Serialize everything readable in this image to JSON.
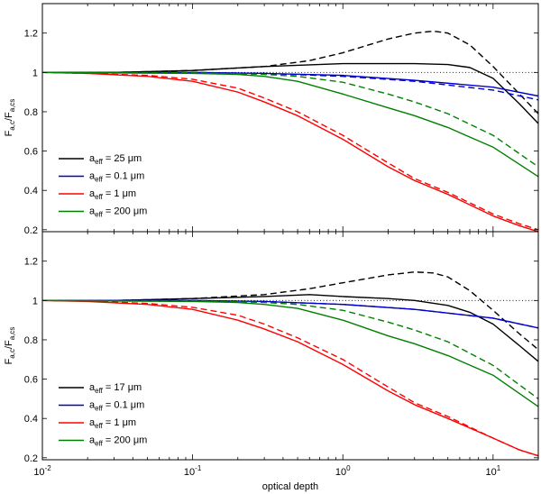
{
  "chart_data": {
    "type": "line",
    "xscale": "log",
    "xlabel": "optical depth",
    "x_ticks": [
      {
        "value": 0.01,
        "base": "10",
        "exp": "-2"
      },
      {
        "value": 0.1,
        "base": "10",
        "exp": "-1"
      },
      {
        "value": 1,
        "base": "10",
        "exp": "0"
      },
      {
        "value": 10,
        "base": "10",
        "exp": "1"
      }
    ],
    "xlim": [
      0.01,
      20
    ],
    "panels": [
      {
        "id": "top",
        "ylabel": {
          "main": "F",
          "sub1": "a,c",
          "slash": "/F",
          "sub2": "a,cs"
        },
        "ylim": [
          0.19,
          1.35
        ],
        "y_ticks": [
          "0.2",
          "0.4",
          "0.6",
          "0.8",
          "1",
          "1.2"
        ],
        "reference_line": 1,
        "legend": [
          {
            "label_prefix": "a",
            "label_sub": "eff",
            "label_value": " = 25 μm",
            "color": "#000000"
          },
          {
            "label_prefix": "a",
            "label_sub": "eff",
            "label_value": " = 0.1 μm",
            "color": "#0000cc"
          },
          {
            "label_prefix": "a",
            "label_sub": "eff",
            "label_value": " = 1 μm",
            "color": "#ff0000"
          },
          {
            "label_prefix": "a",
            "label_sub": "eff",
            "label_value": " = 200 μm",
            "color": "#007f00"
          }
        ],
        "series": [
          {
            "name": "25 μm solid",
            "color": "#000000",
            "dash": false,
            "x": [
              0.01,
              0.03,
              0.1,
              0.3,
              1,
              3,
              5,
              7,
              10,
              15,
              20
            ],
            "y": [
              1.0,
              1.0,
              1.01,
              1.03,
              1.045,
              1.045,
              1.04,
              1.025,
              0.97,
              0.84,
              0.74
            ]
          },
          {
            "name": "25 μm dashed",
            "color": "#000000",
            "dash": true,
            "x": [
              0.01,
              0.03,
              0.1,
              0.3,
              0.6,
              1,
              2,
              3,
              4,
              5,
              7,
              10,
              15,
              20
            ],
            "y": [
              1.0,
              1.0,
              1.01,
              1.03,
              1.06,
              1.1,
              1.17,
              1.2,
              1.21,
              1.2,
              1.14,
              1.03,
              0.89,
              0.79
            ]
          },
          {
            "name": "0.1 μm solid",
            "color": "#0000cc",
            "dash": false,
            "x": [
              0.01,
              0.1,
              0.3,
              1,
              3,
              10,
              20
            ],
            "y": [
              1.0,
              1.0,
              0.995,
              0.985,
              0.96,
              0.925,
              0.88
            ]
          },
          {
            "name": "0.1 μm dashed",
            "color": "#0000cc",
            "dash": true,
            "x": [
              0.01,
              0.1,
              0.3,
              1,
              3,
              10,
              20
            ],
            "y": [
              1.0,
              1.0,
              0.995,
              0.98,
              0.955,
              0.91,
              0.86
            ]
          },
          {
            "name": "1 μm solid",
            "color": "#ff0000",
            "dash": false,
            "x": [
              0.01,
              0.02,
              0.05,
              0.1,
              0.2,
              0.3,
              0.5,
              1,
              2,
              3,
              5,
              10,
              15,
              20
            ],
            "y": [
              1.0,
              0.995,
              0.98,
              0.955,
              0.9,
              0.85,
              0.78,
              0.66,
              0.52,
              0.45,
              0.38,
              0.27,
              0.22,
              0.19
            ]
          },
          {
            "name": "1 μm dashed",
            "color": "#ff0000",
            "dash": true,
            "x": [
              0.01,
              0.02,
              0.05,
              0.1,
              0.2,
              0.3,
              0.5,
              1,
              2,
              3,
              5,
              10,
              15,
              20
            ],
            "y": [
              1.0,
              0.995,
              0.985,
              0.965,
              0.92,
              0.87,
              0.8,
              0.68,
              0.54,
              0.46,
              0.39,
              0.28,
              0.23,
              0.2
            ]
          },
          {
            "name": "200 μm solid",
            "color": "#007f00",
            "dash": false,
            "x": [
              0.01,
              0.1,
              0.2,
              0.3,
              0.5,
              1,
              2,
              3,
              5,
              10,
              20
            ],
            "y": [
              1.0,
              0.995,
              0.99,
              0.98,
              0.955,
              0.89,
              0.82,
              0.78,
              0.72,
              0.62,
              0.47
            ]
          },
          {
            "name": "200 μm dashed",
            "color": "#007f00",
            "dash": true,
            "x": [
              0.01,
              0.1,
              0.3,
              0.5,
              1,
              2,
              3,
              5,
              10,
              20
            ],
            "y": [
              1.0,
              0.998,
              0.99,
              0.98,
              0.95,
              0.89,
              0.85,
              0.79,
              0.68,
              0.52
            ]
          }
        ]
      },
      {
        "id": "bottom",
        "ylabel": {
          "main": "F",
          "sub1": "a,c",
          "slash": "/F",
          "sub2": "a,cs"
        },
        "ylim": [
          0.19,
          1.35
        ],
        "y_ticks": [
          "0.2",
          "0.4",
          "0.6",
          "0.8",
          "1",
          "1.2"
        ],
        "reference_line": 1,
        "legend": [
          {
            "label_prefix": "a",
            "label_sub": "eff",
            "label_value": " = 17 μm",
            "color": "#000000"
          },
          {
            "label_prefix": "a",
            "label_sub": "eff",
            "label_value": " = 0.1 μm",
            "color": "#0000cc"
          },
          {
            "label_prefix": "a",
            "label_sub": "eff",
            "label_value": " = 1 μm",
            "color": "#ff0000"
          },
          {
            "label_prefix": "a",
            "label_sub": "eff",
            "label_value": " = 200 μm",
            "color": "#007f00"
          }
        ],
        "series": [
          {
            "name": "17 μm solid",
            "color": "#000000",
            "dash": false,
            "x": [
              0.01,
              0.03,
              0.1,
              0.3,
              0.6,
              1,
              2,
              3,
              5,
              7,
              10,
              15,
              20
            ],
            "y": [
              1.0,
              1.0,
              1.01,
              1.02,
              1.03,
              1.02,
              1.01,
              1.0,
              0.975,
              0.94,
              0.88,
              0.77,
              0.69
            ]
          },
          {
            "name": "17 μm dashed",
            "color": "#000000",
            "dash": true,
            "x": [
              0.01,
              0.03,
              0.1,
              0.3,
              0.6,
              1,
              2,
              3,
              4,
              5,
              7,
              10,
              15,
              20
            ],
            "y": [
              1.0,
              1.0,
              1.01,
              1.03,
              1.06,
              1.09,
              1.13,
              1.145,
              1.14,
              1.12,
              1.05,
              0.95,
              0.83,
              0.75
            ]
          },
          {
            "name": "0.1 μm solid",
            "color": "#0000cc",
            "dash": false,
            "x": [
              0.01,
              0.1,
              0.3,
              1,
              3,
              10,
              20
            ],
            "y": [
              1.0,
              1.0,
              0.995,
              0.98,
              0.955,
              0.91,
              0.86
            ]
          },
          {
            "name": "0.1 μm dashed",
            "color": "#0000cc",
            "dash": true,
            "x": [
              0.01,
              0.1,
              0.3,
              1,
              3,
              10,
              20
            ],
            "y": [
              1.0,
              1.0,
              0.995,
              0.98,
              0.955,
              0.91,
              0.86
            ]
          },
          {
            "name": "1 μm solid",
            "color": "#ff0000",
            "dash": false,
            "x": [
              0.01,
              0.02,
              0.05,
              0.1,
              0.2,
              0.3,
              0.5,
              1,
              2,
              3,
              5,
              10,
              15,
              20
            ],
            "y": [
              1.0,
              0.995,
              0.98,
              0.955,
              0.9,
              0.855,
              0.79,
              0.675,
              0.54,
              0.47,
              0.4,
              0.3,
              0.24,
              0.21
            ]
          },
          {
            "name": "1 μm dashed",
            "color": "#ff0000",
            "dash": true,
            "x": [
              0.01,
              0.02,
              0.05,
              0.1,
              0.2,
              0.3,
              0.5,
              1,
              2,
              3,
              5,
              10,
              15,
              20
            ],
            "y": [
              1.0,
              0.997,
              0.985,
              0.965,
              0.925,
              0.88,
              0.81,
              0.7,
              0.56,
              0.48,
              0.41,
              0.3,
              0.24,
              0.21
            ]
          },
          {
            "name": "200 μm solid",
            "color": "#007f00",
            "dash": false,
            "x": [
              0.01,
              0.1,
              0.2,
              0.3,
              0.5,
              1,
              2,
              3,
              5,
              10,
              20
            ],
            "y": [
              1.0,
              0.995,
              0.99,
              0.98,
              0.96,
              0.9,
              0.82,
              0.78,
              0.72,
              0.62,
              0.46
            ]
          },
          {
            "name": "200 μm dashed",
            "color": "#007f00",
            "dash": true,
            "x": [
              0.01,
              0.1,
              0.3,
              0.5,
              1,
              2,
              3,
              5,
              10,
              20
            ],
            "y": [
              1.0,
              0.998,
              0.99,
              0.98,
              0.95,
              0.89,
              0.85,
              0.79,
              0.67,
              0.5
            ]
          }
        ]
      }
    ]
  }
}
